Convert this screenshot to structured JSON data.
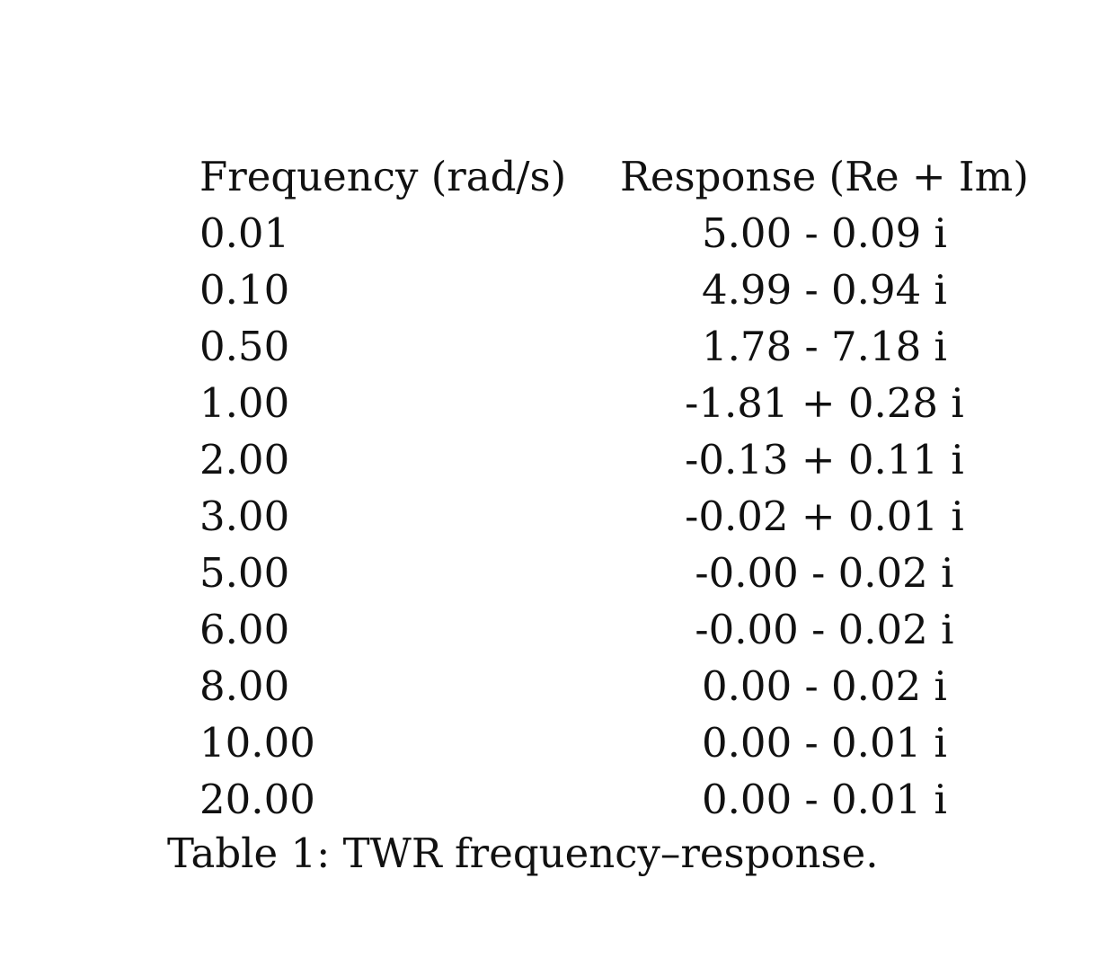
{
  "table": {
    "headers": [
      "Frequency (rad/s)",
      "Response (Re + Im)"
    ],
    "rows": [
      [
        "0.01",
        "5.00 - 0.09 i"
      ],
      [
        "0.10",
        "4.99 - 0.94 i"
      ],
      [
        "0.50",
        "1.78 - 7.18 i"
      ],
      [
        "1.00",
        "-1.81 + 0.28 i"
      ],
      [
        "2.00",
        "-0.13 + 0.11 i"
      ],
      [
        "3.00",
        "-0.02 + 0.01 i"
      ],
      [
        "5.00",
        "-0.00 - 0.02 i"
      ],
      [
        "6.00",
        "-0.00 - 0.02 i"
      ],
      [
        "8.00",
        "0.00 - 0.02 i"
      ],
      [
        "10.00",
        "0.00 - 0.01 i"
      ],
      [
        "20.00",
        "0.00 - 0.01 i"
      ]
    ]
  },
  "caption": "Table 1: TWR frequency–response."
}
